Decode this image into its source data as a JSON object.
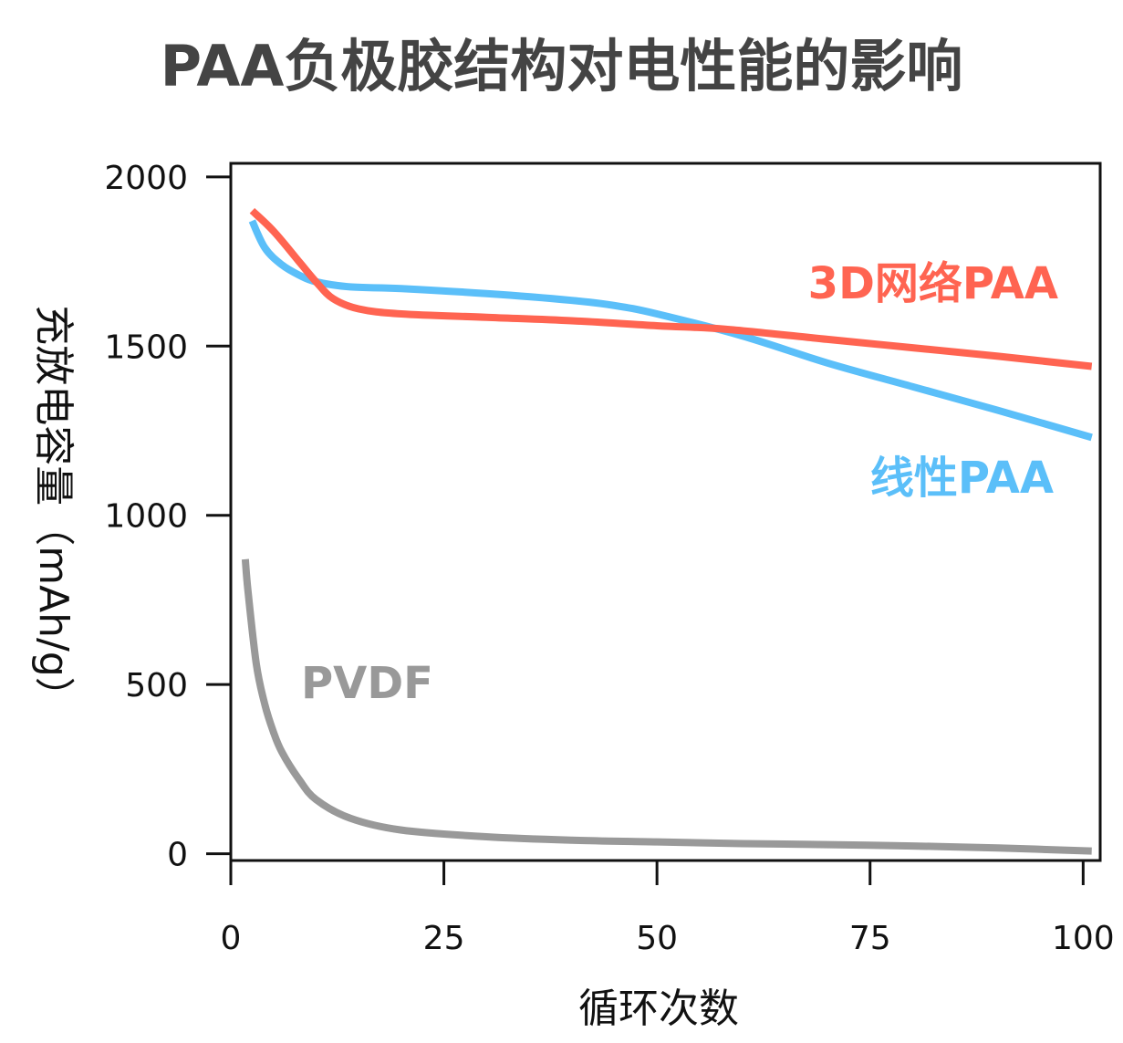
{
  "chart_data": {
    "type": "line",
    "title": "PAA负极胶结构对电性能的影响",
    "xlabel": "循环次数",
    "ylabel": "充放电容量（mAh/g）",
    "xlim": [
      0,
      102
    ],
    "ylim": [
      -20,
      2040
    ],
    "x_ticks": [
      0,
      25,
      50,
      75,
      100
    ],
    "y_ticks": [
      0,
      500,
      1000,
      1500,
      2000
    ],
    "grid": false,
    "legend": "none (series labels placed inline next to lines)",
    "series": [
      {
        "name": "3D网络PAA",
        "color": "#ff6451",
        "x": [
          2.5,
          5,
          8,
          10,
          12,
          15,
          20,
          30,
          40,
          50,
          58,
          70,
          80,
          90,
          101
        ],
        "y": [
          1900,
          1840,
          1750,
          1690,
          1640,
          1610,
          1595,
          1585,
          1575,
          1560,
          1550,
          1520,
          1495,
          1470,
          1440
        ]
      },
      {
        "name": "线性PAA",
        "color": "#5bbff9",
        "x": [
          2.5,
          4,
          6,
          8,
          10,
          14,
          20,
          30,
          40,
          45,
          50,
          60,
          70,
          80,
          90,
          101
        ],
        "y": [
          1870,
          1790,
          1740,
          1710,
          1690,
          1675,
          1670,
          1655,
          1635,
          1620,
          1595,
          1530,
          1450,
          1380,
          1310,
          1230
        ]
      },
      {
        "name": "PVDF",
        "color": "#999999",
        "x": [
          1.7,
          2,
          3,
          4,
          5,
          6,
          8,
          10,
          14,
          20,
          30,
          40,
          50,
          60,
          70,
          80,
          90,
          101
        ],
        "y": [
          870,
          780,
          560,
          440,
          360,
          300,
          220,
          160,
          105,
          70,
          50,
          40,
          35,
          30,
          27,
          23,
          17,
          8
        ]
      }
    ],
    "annotations": [
      {
        "text": "3D网络PAA",
        "series": 0
      },
      {
        "text": "线性PAA",
        "series": 1
      },
      {
        "text": "PVDF",
        "series": 2
      }
    ]
  }
}
